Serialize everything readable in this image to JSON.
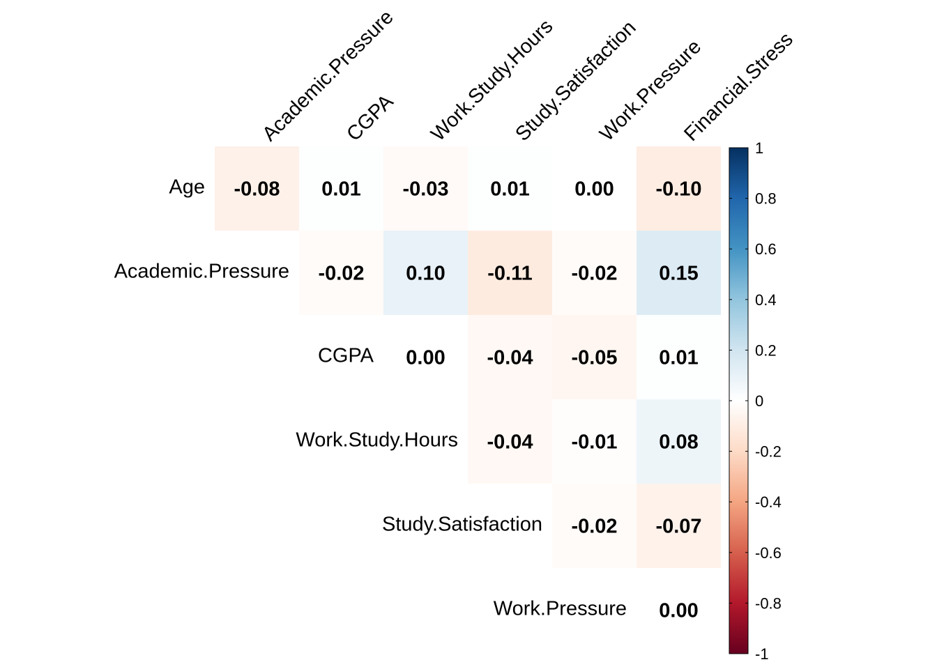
{
  "chart_data": {
    "type": "heatmap",
    "subtype": "upper-triangle correlation matrix",
    "row_labels": [
      "Age",
      "Academic.Pressure",
      "CGPA",
      "Work.Study.Hours",
      "Study.Satisfaction",
      "Work.Pressure"
    ],
    "col_labels": [
      "Academic.Pressure",
      "CGPA",
      "Work.Study.Hours",
      "Study.Satisfaction",
      "Work.Pressure",
      "Financial.Stress"
    ],
    "values": [
      [
        -0.08,
        0.01,
        -0.03,
        0.01,
        0.0,
        -0.1
      ],
      [
        null,
        -0.02,
        0.1,
        -0.11,
        -0.02,
        0.15
      ],
      [
        null,
        null,
        0.0,
        -0.04,
        -0.05,
        0.01
      ],
      [
        null,
        null,
        null,
        -0.04,
        -0.01,
        0.08
      ],
      [
        null,
        null,
        null,
        null,
        -0.02,
        -0.07
      ],
      [
        null,
        null,
        null,
        null,
        null,
        0.0
      ]
    ],
    "value_labels": [
      [
        "-0.08",
        "0.01",
        "-0.03",
        "0.01",
        "0.00",
        "-0.10"
      ],
      [
        null,
        "-0.02",
        "0.10",
        "-0.11",
        "-0.02",
        "0.15"
      ],
      [
        null,
        null,
        "0.00",
        "-0.04",
        "-0.05",
        "0.01"
      ],
      [
        null,
        null,
        null,
        "-0.04",
        "-0.01",
        "0.08"
      ],
      [
        null,
        null,
        null,
        null,
        "-0.02",
        "-0.07"
      ],
      [
        null,
        null,
        null,
        null,
        null,
        "0.00"
      ]
    ],
    "color_scale": {
      "range": [
        -1,
        1
      ],
      "ticks": [
        1,
        0.8,
        0.6,
        0.4,
        0.2,
        0,
        -0.2,
        -0.4,
        -0.6,
        -0.8,
        -1
      ],
      "tick_labels": [
        "1",
        "0.8",
        "0.6",
        "0.4",
        "0.2",
        "0",
        "-0.2",
        "-0.4",
        "-0.6",
        "-0.8",
        "-1"
      ],
      "stops": [
        "#67001f",
        "#b2182b",
        "#d6604d",
        "#f4a582",
        "#fddbc7",
        "#ffffff",
        "#d1e5f0",
        "#92c5de",
        "#4393c3",
        "#2166ac",
        "#053061"
      ]
    },
    "legend": "right"
  }
}
